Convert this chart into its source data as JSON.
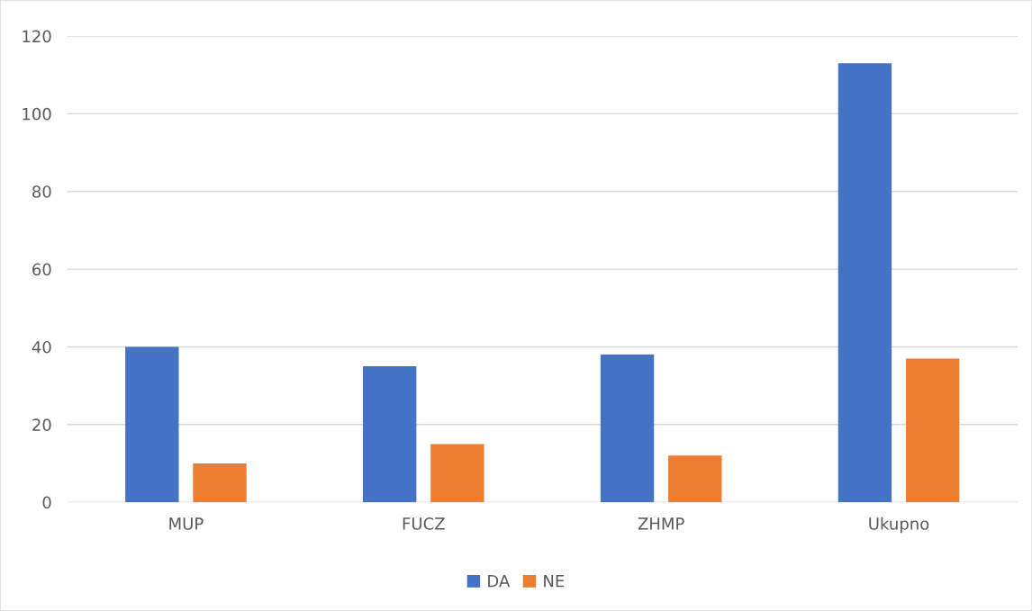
{
  "chart_data": {
    "type": "bar",
    "categories": [
      "MUP",
      "FUCZ",
      "ZHMP",
      "Ukupno"
    ],
    "series": [
      {
        "name": "DA",
        "color": "#4472c4",
        "values": [
          40,
          35,
          38,
          113
        ]
      },
      {
        "name": "NE",
        "color": "#ed7d31",
        "values": [
          10,
          15,
          12,
          37
        ]
      }
    ],
    "ylim": [
      0,
      120
    ],
    "yticks": [
      0,
      20,
      40,
      60,
      80,
      100,
      120
    ],
    "grid": "y",
    "legend": "bottom"
  }
}
